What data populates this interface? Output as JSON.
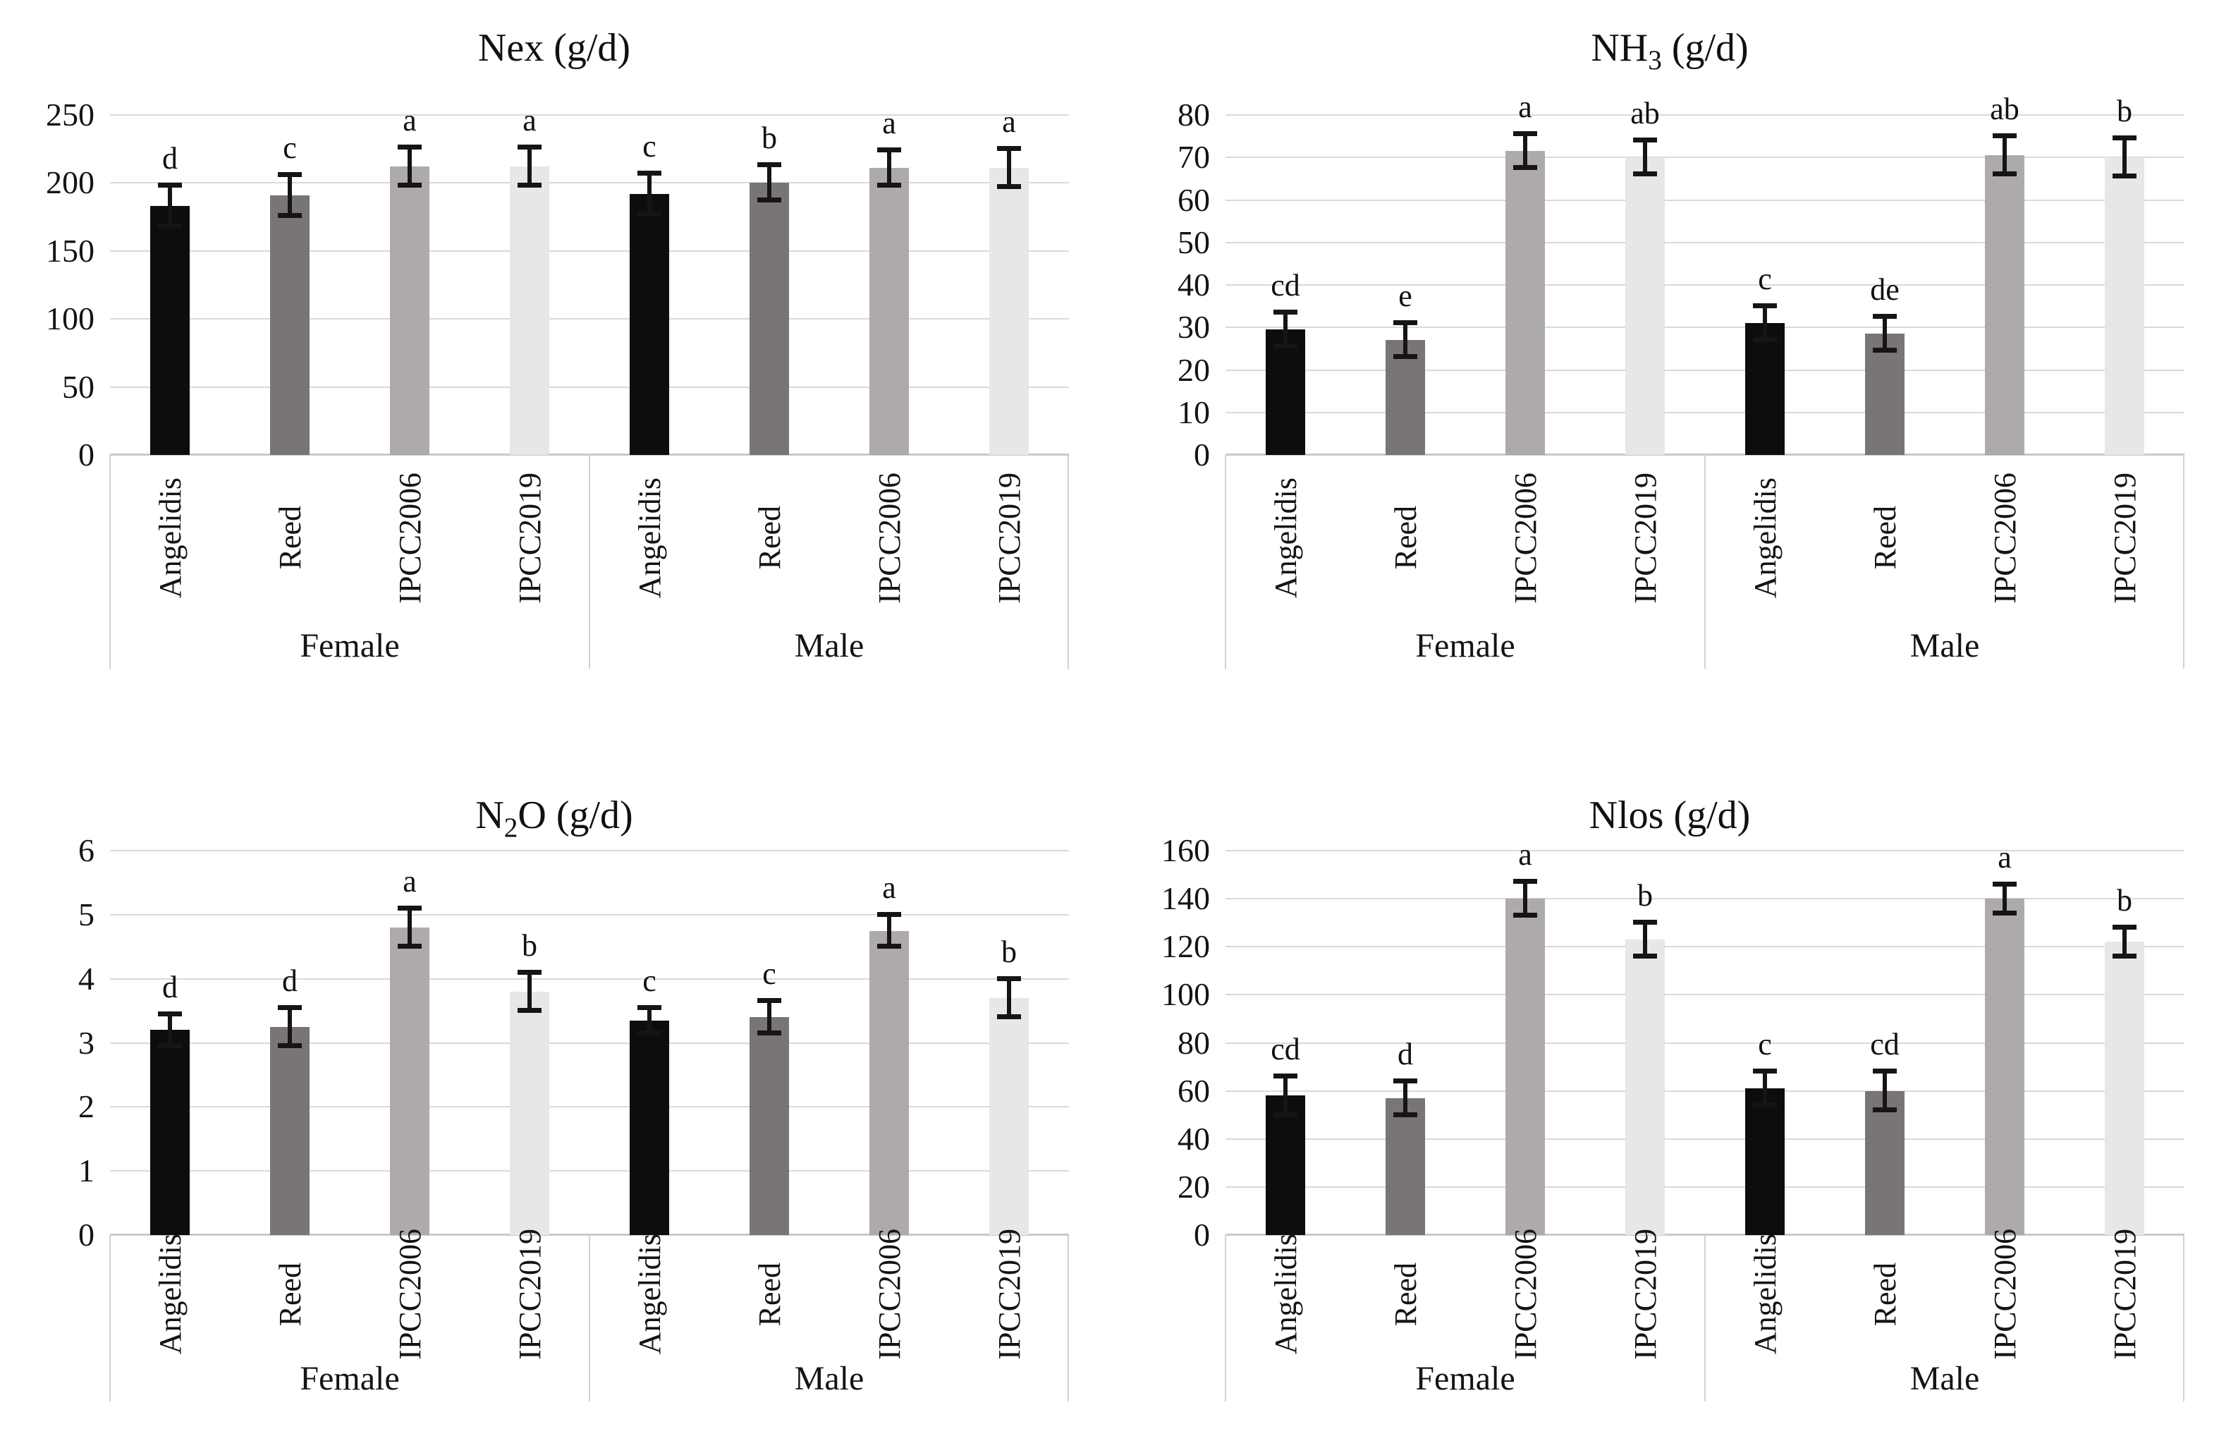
{
  "figure": {
    "bar_colors": {
      "Angelidis": "#0d0d0d",
      "Reed": "#7a7575",
      "IPCC2006": "#aeaaaa",
      "IPCC2019": "#e8e7e7"
    },
    "gridline_color": "#d9d9d9",
    "axis_line_color": "#c9c9c9",
    "error_bar_color": "#151515",
    "categories": [
      "Angelidis",
      "Reed",
      "IPCC2006",
      "IPCC2019"
    ],
    "group_labels": [
      "Female",
      "Male"
    ]
  },
  "chart_data": [
    {
      "type": "bar",
      "title": "Nex (g/d)",
      "title_segments": [
        {
          "text": "Nex (g/d)",
          "sub": false
        }
      ],
      "ylabel": "",
      "xlabel": "",
      "ylim": [
        0,
        250
      ],
      "yticks": [
        0,
        50,
        100,
        150,
        200,
        250
      ],
      "grid": true,
      "legend": "none",
      "categories": [
        "Angelidis",
        "Reed",
        "IPCC2006",
        "IPCC2019"
      ],
      "series": [
        {
          "group": "Female",
          "values": [
            183,
            191,
            212,
            212
          ],
          "errors": [
            15,
            15,
            14,
            14
          ],
          "letters": [
            "d",
            "c",
            "a",
            "a"
          ]
        },
        {
          "group": "Male",
          "values": [
            192,
            200,
            211,
            211
          ],
          "errors": [
            15,
            13,
            13,
            14
          ],
          "letters": [
            "c",
            "b",
            "a",
            "a"
          ]
        }
      ]
    },
    {
      "type": "bar",
      "title": "NH3 (g/d)",
      "title_segments": [
        {
          "text": "NH",
          "sub": false
        },
        {
          "text": "3",
          "sub": true
        },
        {
          "text": " (g/d)",
          "sub": false
        }
      ],
      "ylabel": "",
      "xlabel": "",
      "ylim": [
        0,
        80
      ],
      "yticks": [
        0,
        10,
        20,
        30,
        40,
        50,
        60,
        70,
        80
      ],
      "grid": true,
      "legend": "none",
      "categories": [
        "Angelidis",
        "Reed",
        "IPCC2006",
        "IPCC2019"
      ],
      "series": [
        {
          "group": "Female",
          "values": [
            29.5,
            27,
            71.5,
            70
          ],
          "errors": [
            4,
            4,
            4,
            4
          ],
          "letters": [
            "cd",
            "e",
            "a",
            "ab"
          ]
        },
        {
          "group": "Male",
          "values": [
            31,
            28.5,
            70.5,
            70
          ],
          "errors": [
            4,
            4,
            4.5,
            4.5
          ],
          "letters": [
            "c",
            "de",
            "ab",
            "b"
          ]
        }
      ]
    },
    {
      "type": "bar",
      "title": "N2O (g/d)",
      "title_segments": [
        {
          "text": "N",
          "sub": false
        },
        {
          "text": "2",
          "sub": true
        },
        {
          "text": "O (g/d)",
          "sub": false
        }
      ],
      "ylabel": "",
      "xlabel": "",
      "ylim": [
        0,
        6
      ],
      "yticks": [
        0,
        1,
        2,
        3,
        4,
        5,
        6
      ],
      "grid": true,
      "legend": "none",
      "categories": [
        "Angelidis",
        "Reed",
        "IPCC2006",
        "IPCC2019"
      ],
      "series": [
        {
          "group": "Female",
          "values": [
            3.2,
            3.25,
            4.8,
            3.8
          ],
          "errors": [
            0.25,
            0.3,
            0.3,
            0.3
          ],
          "letters": [
            "d",
            "d",
            "a",
            "b"
          ]
        },
        {
          "group": "Male",
          "values": [
            3.35,
            3.4,
            4.75,
            3.7
          ],
          "errors": [
            0.2,
            0.25,
            0.25,
            0.3
          ],
          "letters": [
            "c",
            "c",
            "a",
            "b"
          ]
        }
      ]
    },
    {
      "type": "bar",
      "title": "Nlos (g/d)",
      "title_segments": [
        {
          "text": "Nlos (g/d)",
          "sub": false
        }
      ],
      "ylabel": "",
      "xlabel": "",
      "ylim": [
        0,
        160
      ],
      "yticks": [
        0,
        20,
        40,
        60,
        80,
        100,
        120,
        140,
        160
      ],
      "grid": true,
      "legend": "none",
      "categories": [
        "Angelidis",
        "Reed",
        "IPCC2006",
        "IPCC2019"
      ],
      "series": [
        {
          "group": "Female",
          "values": [
            58,
            57,
            140,
            123
          ],
          "errors": [
            8,
            7,
            7,
            7
          ],
          "letters": [
            "cd",
            "d",
            "a",
            "b"
          ]
        },
        {
          "group": "Male",
          "values": [
            61,
            60,
            140,
            122
          ],
          "errors": [
            7,
            8,
            6,
            6
          ],
          "letters": [
            "c",
            "cd",
            "a",
            "b"
          ]
        }
      ]
    }
  ]
}
